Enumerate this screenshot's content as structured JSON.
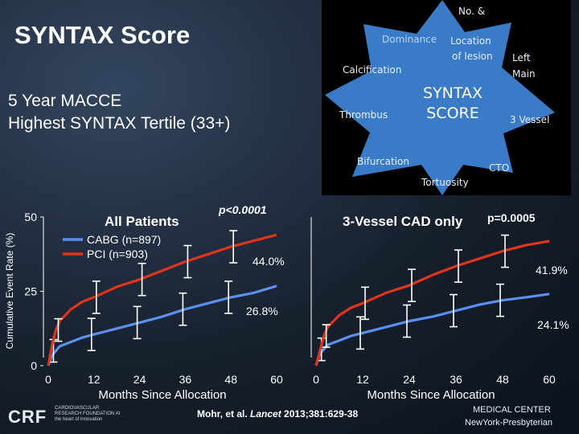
{
  "slide": {
    "title": "SYNTAX Score",
    "subtitle_line1": "5 Year MACCE",
    "subtitle_line2": "Highest SYNTAX Tertile (33+)",
    "citation": "Mohr, et al. Lancet 2013;381:629-38",
    "citation_pre": "Mohr, et al. ",
    "citation_journal": "Lancet",
    "citation_post": " 2013;381:629-38",
    "footer_left_logo": "CRF",
    "footer_left_text": "CARDIOVASCULAR RESEARCH FOUNDATION At the heart of innovation",
    "footer_right_line1": "MEDICAL CENTER",
    "footer_right_line2": "NewYork-Presbyterian"
  },
  "syntax_star": {
    "center_line1": "SYNTAX",
    "center_line2": "SCORE",
    "labels": [
      "Dominance",
      "No. &",
      "Location",
      "of lesion",
      "Left",
      "Main",
      "Calcification",
      "Thrombus",
      "3 Vessel",
      "Bifurcation",
      "CTO",
      "Tortuosity"
    ],
    "color": "#3a7bc8"
  },
  "chart_data": [
    {
      "type": "line",
      "title": "All Patients",
      "p_value": "p<0.0001",
      "ylabel": "Cumulative Event Rate (%)",
      "xlabel": "Months Since Allocation",
      "xlim": [
        0,
        60
      ],
      "ylim": [
        0,
        50
      ],
      "x_ticks": [
        "0",
        "12",
        "24",
        "36",
        "48",
        "60"
      ],
      "y_ticks": [
        "0",
        "25",
        "50"
      ],
      "legend_position": "top-left",
      "series": [
        {
          "name": "CABG (n=897)",
          "color": "#5b8ff0",
          "x": [
            0,
            1,
            2,
            3,
            6,
            9,
            12,
            18,
            24,
            30,
            36,
            42,
            48,
            54,
            60
          ],
          "y": [
            0,
            3.5,
            5,
            6.5,
            8,
            9.5,
            10.5,
            12.5,
            14.5,
            16.5,
            19,
            21,
            23,
            24.5,
            26.8
          ],
          "end_label": "26.8%"
        },
        {
          "name": "PCI (n=903)",
          "color": "#e0341c",
          "x": [
            0,
            1,
            2,
            3,
            6,
            9,
            12,
            18,
            24,
            30,
            36,
            42,
            48,
            54,
            60
          ],
          "y": [
            0,
            7,
            12,
            15,
            19,
            21.5,
            23,
            26.5,
            29,
            32,
            35,
            37.5,
            40,
            42,
            44.0
          ],
          "end_label": "44.0%"
        }
      ]
    },
    {
      "type": "line",
      "title": "3-Vessel CAD only",
      "p_value": "p=0.0005",
      "xlabel": "Months Since Allocation",
      "xlim": [
        0,
        60
      ],
      "ylim": [
        0,
        50
      ],
      "x_ticks": [
        "0",
        "12",
        "24",
        "36",
        "48",
        "60"
      ],
      "series": [
        {
          "name": "CABG",
          "color": "#5b8ff0",
          "x": [
            0,
            1,
            2,
            3,
            6,
            9,
            12,
            18,
            24,
            30,
            36,
            42,
            48,
            54,
            60
          ],
          "y": [
            0,
            4,
            5.5,
            7,
            8.5,
            10,
            11,
            13,
            15,
            16.5,
            18.5,
            20.5,
            22,
            23,
            24.1
          ],
          "end_label": "24.1%"
        },
        {
          "name": "PCI",
          "color": "#e0341c",
          "x": [
            0,
            1,
            2,
            3,
            6,
            9,
            12,
            18,
            24,
            30,
            36,
            42,
            48,
            54,
            60
          ],
          "y": [
            0,
            5,
            10,
            13,
            17,
            19.5,
            21,
            24.5,
            27,
            30.5,
            33.5,
            36,
            38.5,
            40.5,
            41.9
          ],
          "end_label": "41.9%"
        }
      ]
    }
  ]
}
